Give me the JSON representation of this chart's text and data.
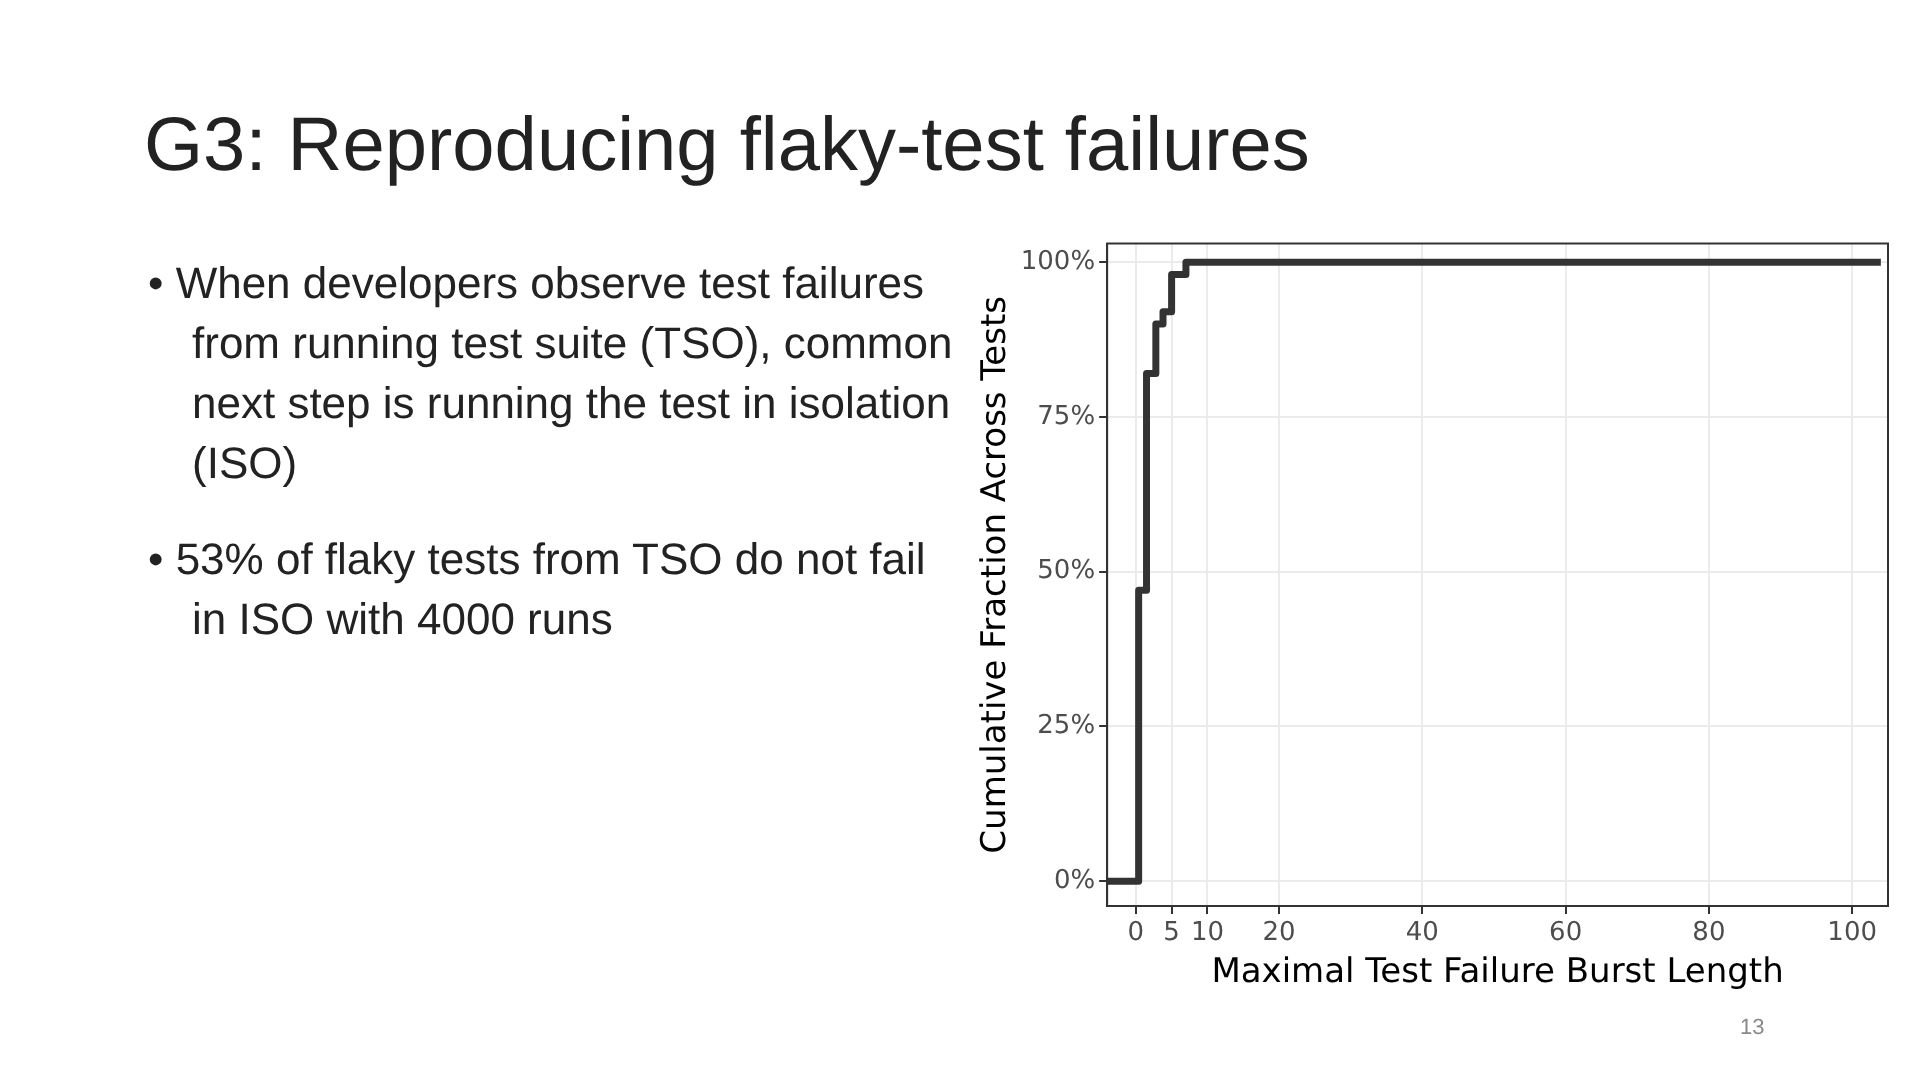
{
  "chart_data": {
    "type": "step",
    "title": "G3: Reproducing flaky-test failures",
    "annotations": [
      "• When developers observe test failures from running test suite (TSO), common next step is running the test in isolation (ISO)",
      "• 53% of flaky tests from TSO do not fail in ISO with 4000 runs",
      "13"
    ],
    "xlabel": "Maximal Test Failure Burst Length",
    "ylabel": "Cumulative Fraction Across Tests",
    "x": [
      -4,
      0.4,
      1.5,
      2.8,
      3.8,
      5,
      7,
      104
    ],
    "series": [
      {
        "color": "#333333",
        "values": [
          0,
          47,
          82,
          90,
          92,
          98,
          100,
          100
        ]
      }
    ],
    "xlim": [
      -4,
      105
    ],
    "xticks": [
      0,
      5,
      10,
      20,
      40,
      60,
      80,
      100
    ],
    "ylim": [
      -4,
      103
    ],
    "yticks": [
      {
        "value": 0,
        "label": "0%"
      },
      {
        "value": 25,
        "label": "25%"
      },
      {
        "value": 50,
        "label": "50%"
      },
      {
        "value": 75,
        "label": "75%"
      },
      {
        "value": 100,
        "label": "100%"
      }
    ],
    "grid": true,
    "line_style": "solid",
    "marker": "none"
  }
}
